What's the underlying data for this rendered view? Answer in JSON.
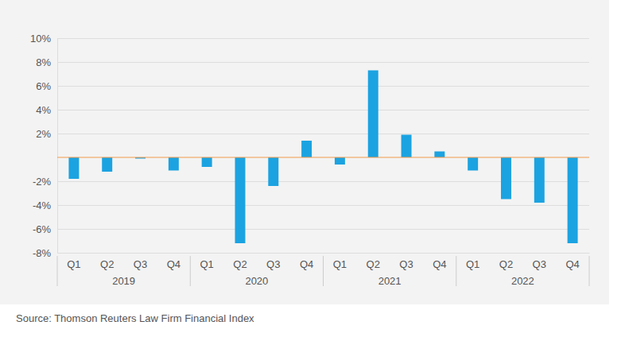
{
  "chart_data": {
    "type": "bar",
    "categories": [
      "Q1",
      "Q2",
      "Q3",
      "Q4",
      "Q1",
      "Q2",
      "Q3",
      "Q4",
      "Q1",
      "Q2",
      "Q3",
      "Q4",
      "Q1",
      "Q2",
      "Q3",
      "Q4"
    ],
    "x_groups": [
      "2019",
      "2020",
      "2021",
      "2022"
    ],
    "values": [
      -1.8,
      -1.2,
      -0.1,
      -1.1,
      -0.8,
      -7.2,
      -2.4,
      1.4,
      -0.6,
      7.3,
      1.9,
      0.5,
      -1.1,
      -3.5,
      -3.8,
      -7.2
    ],
    "color": "#1ba3e1",
    "ylim": [
      -8,
      10
    ],
    "yticks": [
      {
        "value": -8,
        "label": "-8%"
      },
      {
        "value": -6,
        "label": "-6%"
      },
      {
        "value": -4,
        "label": "-4%"
      },
      {
        "value": -2,
        "label": "-2%"
      },
      {
        "value": 2,
        "label": "2%"
      },
      {
        "value": 4,
        "label": "4%"
      },
      {
        "value": 6,
        "label": "6%"
      },
      {
        "value": 8,
        "label": "8%"
      },
      {
        "value": 10,
        "label": "10%"
      }
    ],
    "grid": true,
    "source": "Source: Thomson Reuters Law Firm Financial Index"
  }
}
